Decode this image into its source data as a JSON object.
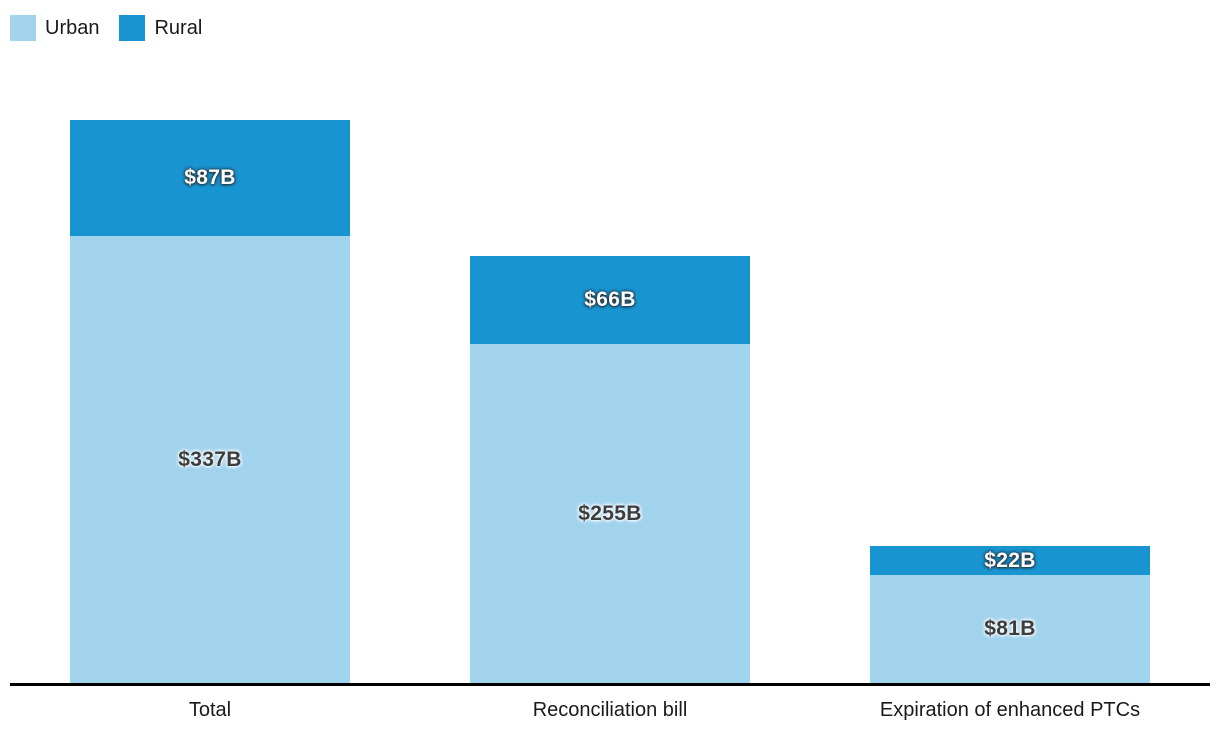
{
  "legend": {
    "items": [
      {
        "label": "Urban",
        "color": "#a2d3ed",
        "swatch_icon": "square-swatch-icon"
      },
      {
        "label": "Rural",
        "color": "#1894d1",
        "swatch_icon": "square-swatch-icon"
      }
    ],
    "position": "top-left"
  },
  "chart_data": {
    "type": "bar",
    "stacked": true,
    "orientation": "vertical",
    "categories": [
      "Total",
      "Reconciliation bill",
      "Expiration of enhanced PTCs"
    ],
    "series": [
      {
        "name": "Urban",
        "color": "#a2d3ed",
        "values": [
          337,
          255,
          81
        ],
        "value_labels": [
          "$337B",
          "$255B",
          "$81B"
        ]
      },
      {
        "name": "Rural",
        "color": "#1894d1",
        "values": [
          87,
          66,
          22
        ],
        "value_labels": [
          "$87B",
          "$66B",
          "$22B"
        ]
      }
    ],
    "title": "",
    "xlabel": "",
    "ylabel": "",
    "ylim": [
      0,
      424
    ],
    "y_axis_visible": false,
    "grid": false,
    "x_axis_line": true,
    "legend_position": "top-left"
  },
  "colors": {
    "axis_line": "#000000",
    "category_label": "#1a1a1a",
    "value_label_dark": "#3d3d3d",
    "value_label_light": "#ffffff",
    "background": "#ffffff"
  }
}
